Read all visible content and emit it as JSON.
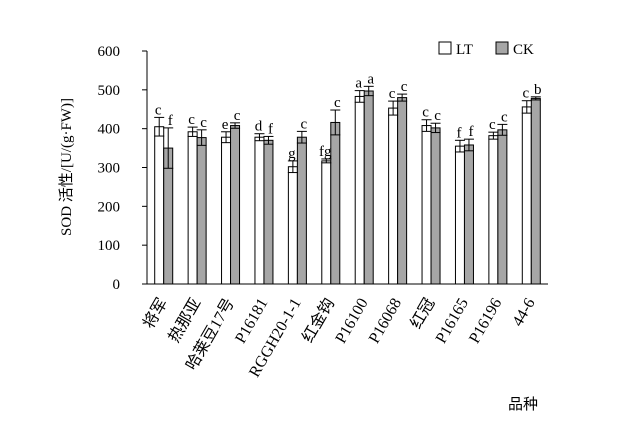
{
  "chart_data": {
    "type": "bar",
    "title": "",
    "xlabel": "品种",
    "ylabel": "SOD 活性/[U/(g·FW)]",
    "ylim": [
      0,
      600
    ],
    "yticks": [
      0,
      100,
      200,
      300,
      400,
      500,
      600
    ],
    "grid": false,
    "legend_position": "top-right",
    "categories": [
      "将军",
      "热那亚",
      "哈莱豆17号",
      "P16181",
      "RGGH20-1-1",
      "红金钩",
      "P16100",
      "P16068",
      "红冠",
      "P16165",
      "P16196",
      "44-6"
    ],
    "series": [
      {
        "name": "LT",
        "color": "#ffffff",
        "values": [
          405,
          392,
          378,
          378,
          302,
          317,
          483,
          453,
          408,
          355,
          382,
          456
        ],
        "errors": [
          24,
          12,
          14,
          9,
          15,
          5,
          15,
          18,
          15,
          15,
          9,
          16
        ],
        "letters": [
          "c",
          "c",
          "e",
          "d",
          "g",
          "fg",
          "a",
          "c",
          "c",
          "f",
          "c",
          "c"
        ]
      },
      {
        "name": "CK",
        "color": "#a6a6a6",
        "values": [
          350,
          377,
          408,
          370,
          378,
          416,
          497,
          480,
          402,
          358,
          397,
          478
        ],
        "errors": [
          52,
          20,
          7,
          10,
          15,
          32,
          12,
          9,
          12,
          15,
          14,
          4
        ],
        "letters": [
          "f",
          "c",
          "c",
          "f",
          "c",
          "c",
          "a",
          "c",
          "c",
          "f",
          "c",
          "b"
        ]
      }
    ]
  }
}
